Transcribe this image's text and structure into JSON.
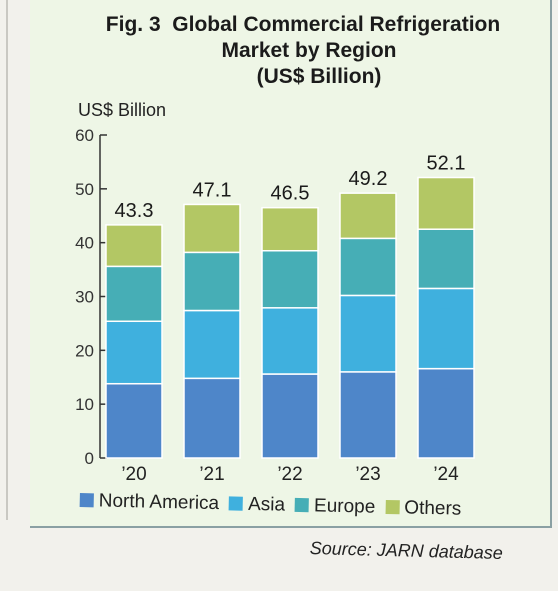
{
  "chart_data": {
    "type": "bar",
    "stacked": true,
    "title_fig": "Fig. 3",
    "title_line1": "Global Commercial Refrigeration",
    "title_line2": "Market by Region",
    "title_line3": "(US$ Billion)",
    "ylabel": "US$ Billion",
    "xlabel": "",
    "ylim": [
      0,
      60
    ],
    "yticks": [
      "0",
      "10",
      "20",
      "30",
      "40",
      "50",
      "60"
    ],
    "categories": [
      "’20",
      "’21",
      "’22",
      "’23",
      "’24"
    ],
    "totals": [
      "43.3",
      "47.1",
      "46.5",
      "49.2",
      "52.1"
    ],
    "series": [
      {
        "name": "North America",
        "values": [
          13.8,
          14.8,
          15.6,
          16.0,
          16.6
        ],
        "color": "#4e86c9"
      },
      {
        "name": "Asia",
        "values": [
          11.6,
          12.6,
          12.3,
          14.2,
          14.9
        ],
        "color": "#3fb0de"
      },
      {
        "name": "Europe",
        "values": [
          10.2,
          10.8,
          10.6,
          10.6,
          11.0
        ],
        "color": "#46aeb6"
      },
      {
        "name": "Others",
        "values": [
          7.7,
          8.9,
          8.0,
          8.4,
          9.6
        ],
        "color": "#b3c764"
      }
    ],
    "legend_position": "bottom",
    "grid": false,
    "source": "Source: JARN database"
  }
}
